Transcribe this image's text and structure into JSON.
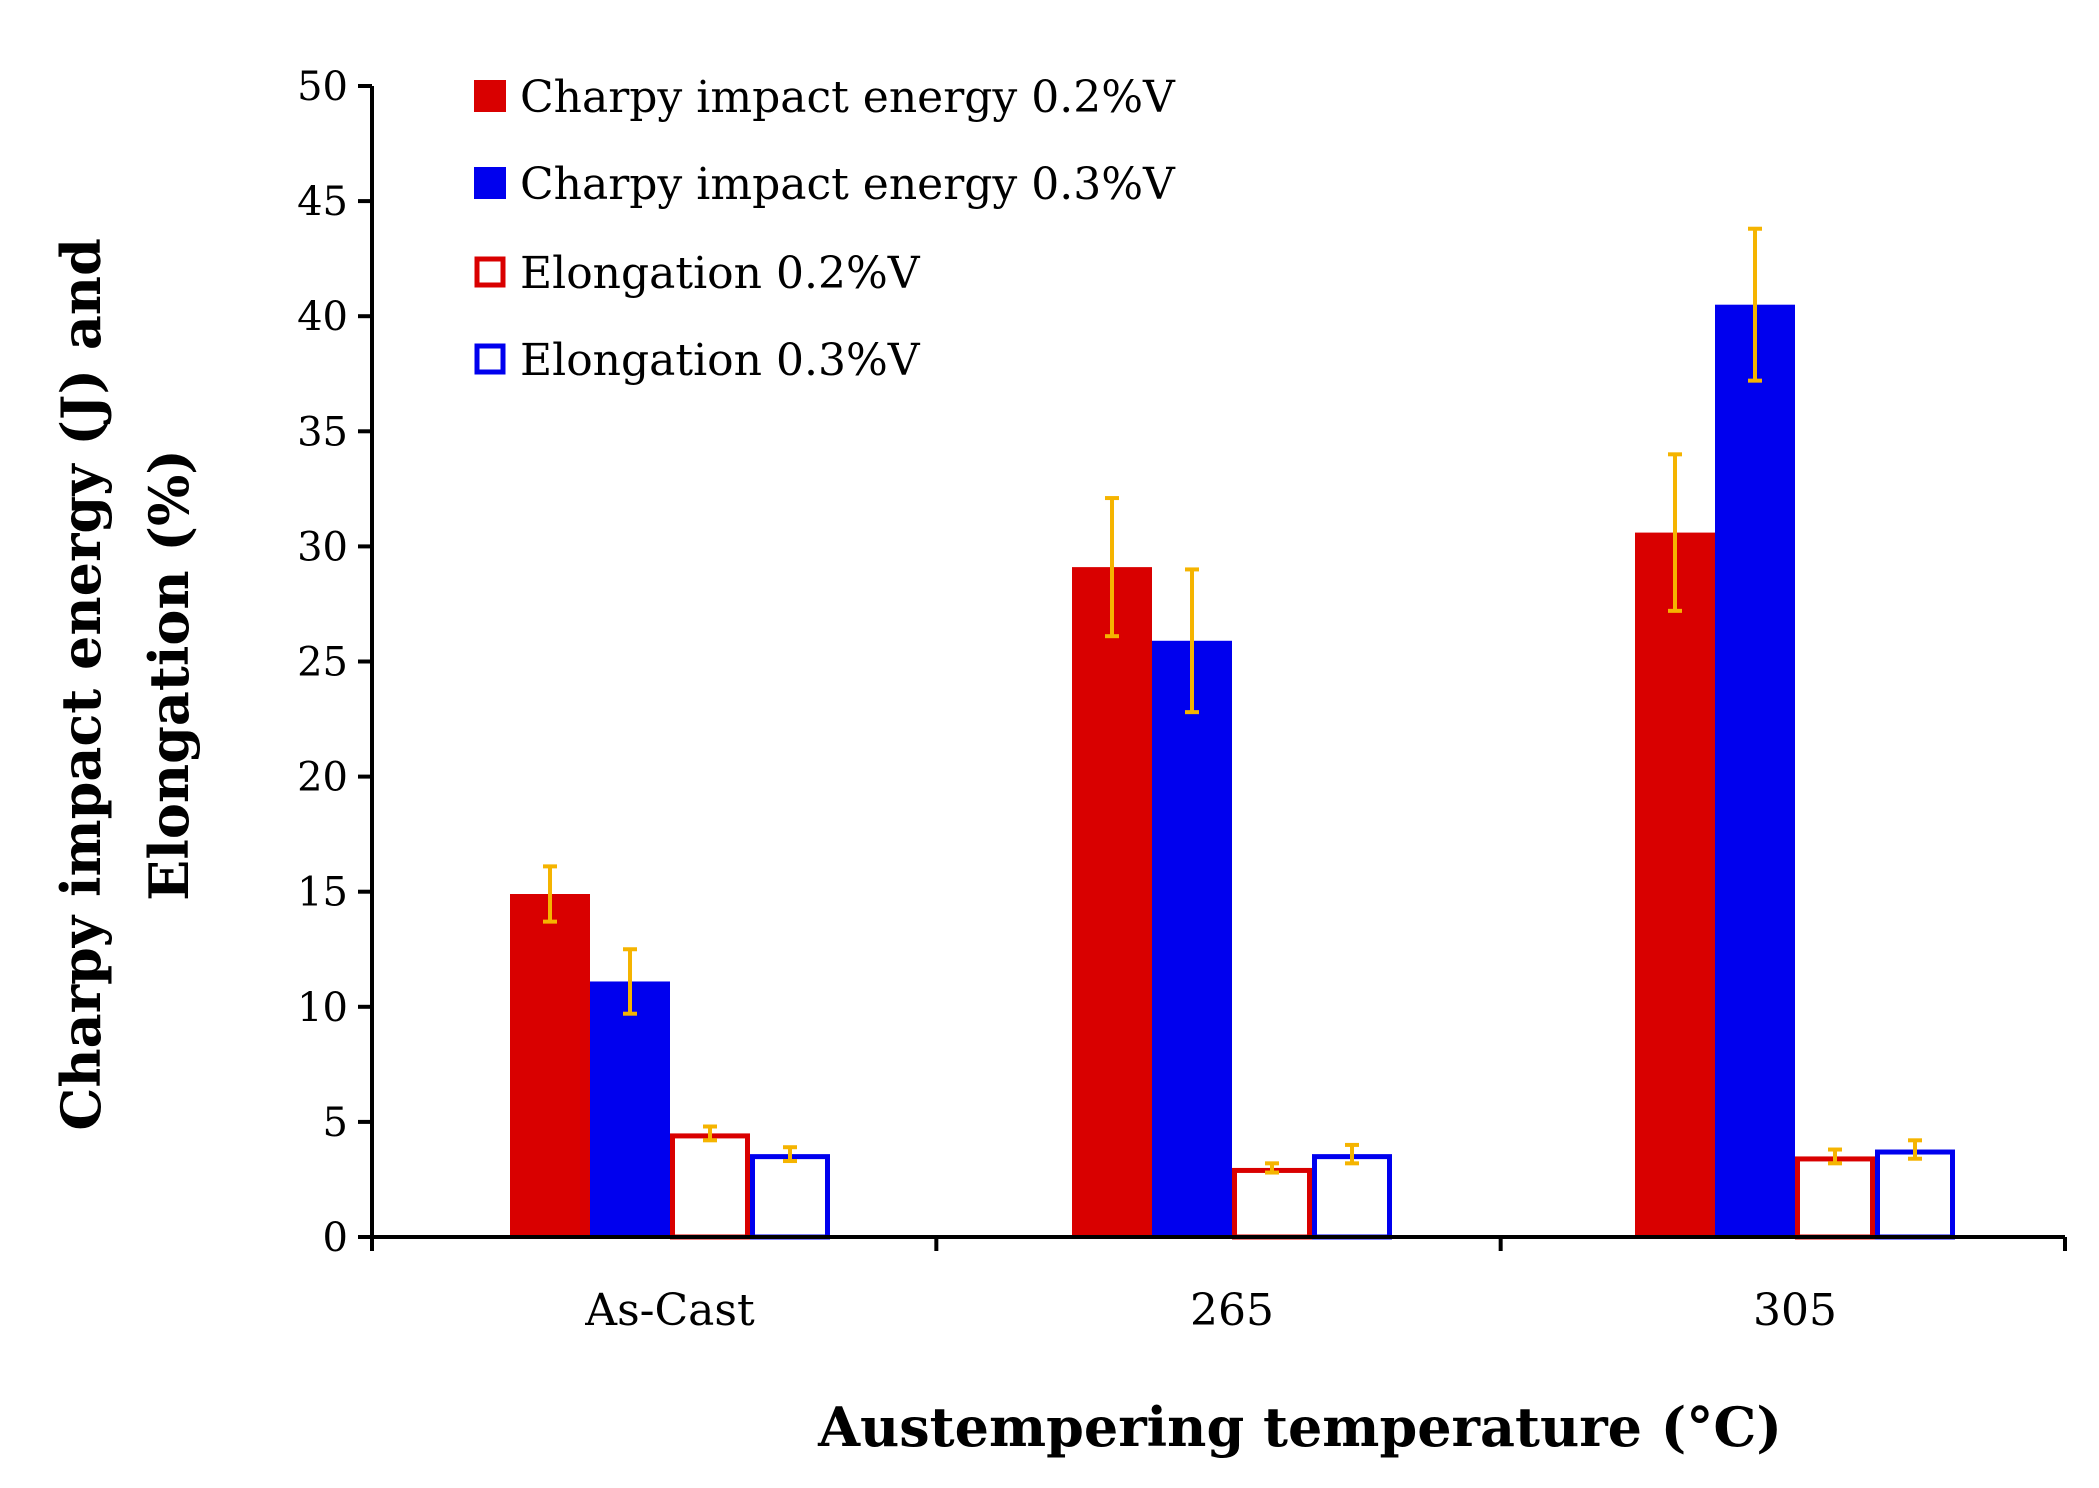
{
  "chart_data": {
    "type": "bar",
    "title": "",
    "xlabel": "Austempering temperature (°C)",
    "ylabel_lines": [
      "Charpy impact energy (J) and",
      "Elongation (%)"
    ],
    "ylim": [
      0,
      50
    ],
    "yticks": [
      0,
      5,
      10,
      15,
      20,
      25,
      30,
      35,
      40,
      45,
      50
    ],
    "ytick_labels": [
      "0",
      "5",
      "10",
      "15",
      "20",
      "25",
      "30",
      "35",
      "40",
      "45",
      "50"
    ],
    "categories": [
      "As-Cast",
      "265",
      "305"
    ],
    "legend_position": "top-left",
    "series": [
      {
        "name": "Charpy impact energy 0.2%V",
        "style": "filled",
        "color": "#d90000",
        "values": [
          14.9,
          29.1,
          30.6
        ],
        "errors": [
          1.2,
          3.0,
          3.4
        ]
      },
      {
        "name": "Charpy impact energy 0.3%V",
        "style": "filled",
        "color": "#0000ee",
        "values": [
          11.1,
          25.9,
          40.5
        ],
        "errors": [
          1.4,
          3.1,
          3.3
        ]
      },
      {
        "name": "Elongation 0.2%V",
        "style": "outline",
        "color": "#d90000",
        "values": [
          4.5,
          3.0,
          3.5
        ],
        "errors": [
          0.3,
          0.2,
          0.3
        ]
      },
      {
        "name": "Elongation 0.3%V",
        "style": "outline",
        "color": "#0000ee",
        "values": [
          3.6,
          3.6,
          3.8
        ],
        "errors": [
          0.3,
          0.4,
          0.4
        ]
      }
    ],
    "error_bar_color": "#f5b400"
  }
}
